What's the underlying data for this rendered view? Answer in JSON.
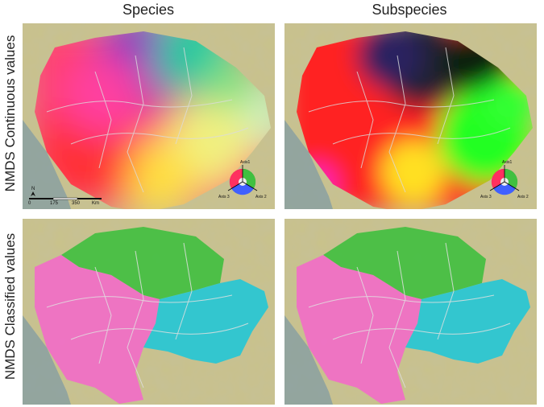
{
  "columns": [
    "Species",
    "Subspecies"
  ],
  "rows": [
    "NMDS Continuous values",
    "NMDS Classified values"
  ],
  "scale_bar": {
    "ticks": [
      "0",
      "175",
      "350"
    ],
    "unit": "Km"
  },
  "north_arrow": "N",
  "color_wheel": {
    "axis1": "Axis1",
    "axis2": "Axis 2",
    "axis3": "Axis 3"
  },
  "colors": {
    "ocean": "#6f93a8",
    "land": "#c9c28a",
    "relief": "#a89e6b",
    "green_class": "#3fbf3f",
    "pink_class": "#f26cc8",
    "cyan_class": "#22c6d6",
    "boundaries": "#d9d9d9"
  }
}
